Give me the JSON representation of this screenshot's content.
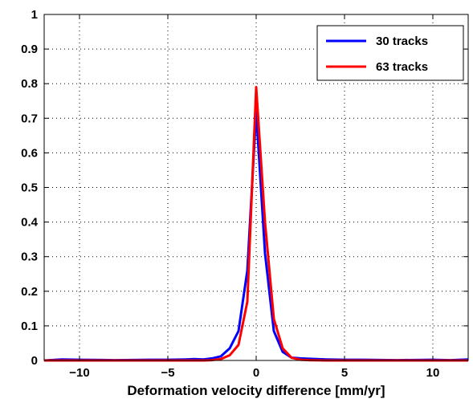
{
  "chart_data": {
    "type": "line",
    "title": "",
    "xlabel": "Deformation velocity difference [mm/yr]",
    "ylabel": "",
    "xlim": [
      -12,
      12
    ],
    "ylim": [
      0,
      1
    ],
    "xticks": [
      -10,
      -5,
      0,
      5,
      10
    ],
    "xtick_labels": [
      "−10",
      "−5",
      "0",
      "5",
      "10"
    ],
    "yticks": [
      0,
      0.1,
      0.2,
      0.3,
      0.4,
      0.5,
      0.6,
      0.7,
      0.8,
      0.9,
      1
    ],
    "ytick_labels": [
      "0",
      "0.1",
      "0.2",
      "0.3",
      "0.4",
      "0.5",
      "0.6",
      "0.7",
      "0.8",
      "0.9",
      "1"
    ],
    "grid": true,
    "legend_position": "top-right",
    "series": [
      {
        "name": "30 tracks",
        "color": "#0000ff",
        "x": [
          -12,
          -11,
          -10,
          -8,
          -6,
          -5,
          -4,
          -3.5,
          -3,
          -2.5,
          -2,
          -1.5,
          -1,
          -0.5,
          0,
          0.5,
          1,
          1.5,
          2,
          2.5,
          3,
          4,
          5,
          6,
          8,
          10,
          11,
          12
        ],
        "y": [
          0,
          0.003,
          0.002,
          0.001,
          0.002,
          0.002,
          0.003,
          0.004,
          0.003,
          0.006,
          0.012,
          0.035,
          0.085,
          0.26,
          0.72,
          0.31,
          0.085,
          0.025,
          0.008,
          0.006,
          0.005,
          0.003,
          0.002,
          0.002,
          0.001,
          0.002,
          0.001,
          0.003
        ]
      },
      {
        "name": "63 tracks",
        "color": "#ff0000",
        "x": [
          -12,
          -10,
          -8,
          -6,
          -4,
          -3,
          -2.5,
          -2,
          -1.5,
          -1,
          -0.5,
          0,
          0.5,
          1,
          1.5,
          2,
          2.5,
          3,
          4,
          6,
          8,
          10,
          12
        ],
        "y": [
          0,
          0,
          0,
          0,
          0,
          0,
          0.001,
          0.004,
          0.015,
          0.045,
          0.17,
          0.79,
          0.4,
          0.12,
          0.035,
          0.008,
          0.002,
          0.001,
          0,
          0,
          0,
          0,
          0
        ]
      }
    ]
  }
}
